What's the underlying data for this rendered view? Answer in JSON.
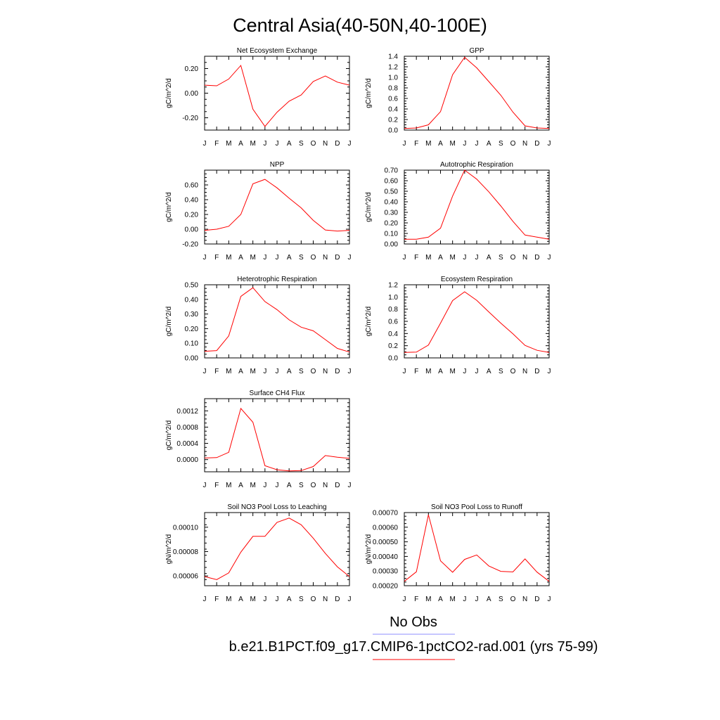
{
  "figure": {
    "title": "Central Asia(40-50N,40-100E)",
    "legend": [
      {
        "label": "No Obs",
        "color": "#8f8fff"
      },
      {
        "label": "b.e21.B1PCT.f09_g17.CMIP6-1pctCO2-rad.001 (yrs 75-99)",
        "color": "#ff0000"
      }
    ]
  },
  "chart_data": [
    {
      "type": "line",
      "title": "Net Ecosystem Exchange",
      "ylabel": "gC/m^2/d",
      "categories": [
        "J",
        "F",
        "M",
        "A",
        "M",
        "J",
        "J",
        "A",
        "S",
        "O",
        "N",
        "D",
        "J"
      ],
      "ylim": [
        -0.3,
        0.3
      ],
      "yticks": [
        -0.2,
        0.0,
        0.2
      ],
      "yticklabels": [
        "-0.20",
        "0.00",
        "0.20"
      ],
      "series": [
        {
          "color": "#ff0000",
          "values": [
            0.065,
            0.06,
            0.115,
            0.225,
            -0.13,
            -0.27,
            -0.155,
            -0.065,
            -0.015,
            0.095,
            0.14,
            0.09,
            0.065
          ]
        }
      ]
    },
    {
      "type": "line",
      "title": "GPP",
      "ylabel": "gC/m^2/d",
      "categories": [
        "J",
        "F",
        "M",
        "A",
        "M",
        "J",
        "J",
        "A",
        "S",
        "O",
        "N",
        "D",
        "J"
      ],
      "ylim": [
        0,
        1.4
      ],
      "yticks": [
        0.0,
        0.2,
        0.4,
        0.6,
        0.8,
        1.0,
        1.2,
        1.4
      ],
      "yticklabels": [
        "0.0",
        "0.2",
        "0.4",
        "0.6",
        "0.8",
        "1.0",
        "1.2",
        "1.4"
      ],
      "series": [
        {
          "color": "#ff0000",
          "values": [
            0.03,
            0.04,
            0.1,
            0.35,
            1.05,
            1.38,
            1.18,
            0.92,
            0.66,
            0.34,
            0.08,
            0.04,
            0.03
          ]
        }
      ]
    },
    {
      "type": "line",
      "title": "NPP",
      "ylabel": "gC/m^2/d",
      "categories": [
        "J",
        "F",
        "M",
        "A",
        "M",
        "J",
        "J",
        "A",
        "S",
        "O",
        "N",
        "D",
        "J"
      ],
      "ylim": [
        -0.2,
        0.8
      ],
      "yticks": [
        -0.2,
        0.0,
        0.2,
        0.4,
        0.6
      ],
      "yticklabels": [
        "-0.20",
        "0.00",
        "0.20",
        "0.40",
        "0.60"
      ],
      "series": [
        {
          "color": "#ff0000",
          "values": [
            -0.015,
            0.0,
            0.04,
            0.2,
            0.615,
            0.675,
            0.56,
            0.42,
            0.29,
            0.12,
            -0.01,
            -0.025,
            -0.015
          ]
        }
      ]
    },
    {
      "type": "line",
      "title": "Autotrophic Respiration",
      "ylabel": "gC/m^2/d",
      "categories": [
        "J",
        "F",
        "M",
        "A",
        "M",
        "J",
        "J",
        "A",
        "S",
        "O",
        "N",
        "D",
        "J"
      ],
      "ylim": [
        0,
        0.7
      ],
      "yticks": [
        0.0,
        0.1,
        0.2,
        0.3,
        0.4,
        0.5,
        0.6,
        0.7
      ],
      "yticklabels": [
        "0.00",
        "0.10",
        "0.20",
        "0.30",
        "0.40",
        "0.50",
        "0.60",
        "0.70"
      ],
      "series": [
        {
          "color": "#ff0000",
          "values": [
            0.045,
            0.045,
            0.065,
            0.15,
            0.455,
            0.7,
            0.615,
            0.495,
            0.36,
            0.215,
            0.085,
            0.065,
            0.045
          ]
        }
      ]
    },
    {
      "type": "line",
      "title": "Heterotrophic Respiration",
      "ylabel": "gC/m^2/d",
      "categories": [
        "J",
        "F",
        "M",
        "A",
        "M",
        "J",
        "J",
        "A",
        "S",
        "O",
        "N",
        "D",
        "J"
      ],
      "ylim": [
        0,
        0.5
      ],
      "yticks": [
        0.0,
        0.1,
        0.2,
        0.3,
        0.4,
        0.5
      ],
      "yticklabels": [
        "0.00",
        "0.10",
        "0.20",
        "0.30",
        "0.40",
        "0.50"
      ],
      "series": [
        {
          "color": "#ff0000",
          "values": [
            0.045,
            0.05,
            0.15,
            0.42,
            0.48,
            0.385,
            0.33,
            0.26,
            0.21,
            0.185,
            0.125,
            0.065,
            0.04
          ]
        }
      ]
    },
    {
      "type": "line",
      "title": "Ecosystem Respiration",
      "ylabel": "gC/m^2/d",
      "categories": [
        "J",
        "F",
        "M",
        "A",
        "M",
        "J",
        "J",
        "A",
        "S",
        "O",
        "N",
        "D",
        "J"
      ],
      "ylim": [
        0,
        1.2
      ],
      "yticks": [
        0.0,
        0.2,
        0.4,
        0.6,
        0.8,
        1.0,
        1.2
      ],
      "yticklabels": [
        "0.0",
        "0.2",
        "0.4",
        "0.6",
        "0.8",
        "1.0",
        "1.2"
      ],
      "series": [
        {
          "color": "#ff0000",
          "values": [
            0.09,
            0.095,
            0.21,
            0.57,
            0.94,
            1.085,
            0.945,
            0.755,
            0.57,
            0.395,
            0.205,
            0.125,
            0.09
          ]
        }
      ]
    },
    {
      "type": "line",
      "title": "Surface CH4 Flux",
      "ylabel": "gC/m^2/d",
      "categories": [
        "J",
        "F",
        "M",
        "A",
        "M",
        "J",
        "J",
        "A",
        "S",
        "O",
        "N",
        "D",
        "J"
      ],
      "ylim": [
        -0.0003,
        0.0015
      ],
      "yticks": [
        0.0,
        0.0004,
        0.0008,
        0.0012
      ],
      "yticklabels": [
        "0.0000",
        "0.0004",
        "0.0008",
        "0.0012"
      ],
      "series": [
        {
          "color": "#ff0000",
          "values": [
            4e-05,
            5e-05,
            0.00018,
            0.00126,
            0.00092,
            -0.00015,
            -0.00025,
            -0.00028,
            -0.00027,
            -0.00017,
            0.0001,
            6e-05,
            3e-05
          ]
        }
      ]
    },
    {
      "type": "line",
      "title": "Soil NO3 Pool Loss to Leaching",
      "ylabel": "gN/m^2/d",
      "categories": [
        "J",
        "F",
        "M",
        "A",
        "M",
        "J",
        "J",
        "A",
        "S",
        "O",
        "N",
        "D",
        "J"
      ],
      "ylim": [
        5.2e-05,
        0.000112
      ],
      "yticks": [
        6e-05,
        8e-05,
        0.0001
      ],
      "yticklabels": [
        "0.00006",
        "0.00008",
        "0.00010"
      ],
      "series": [
        {
          "color": "#ff0000",
          "values": [
            5.95e-05,
            5.7e-05,
            6.25e-05,
            7.95e-05,
            9.25e-05,
            9.25e-05,
            0.000104,
            0.0001075,
            0.000102,
            9.1e-05,
            7.85e-05,
            6.75e-05,
            5.95e-05
          ]
        }
      ]
    },
    {
      "type": "line",
      "title": "Soil NO3 Pool Loss to Runoff",
      "ylabel": "gN/m^2/d",
      "categories": [
        "J",
        "F",
        "M",
        "A",
        "M",
        "J",
        "J",
        "A",
        "S",
        "O",
        "N",
        "D",
        "J"
      ],
      "ylim": [
        0.0002,
        0.0007
      ],
      "yticks": [
        0.0002,
        0.0003,
        0.0004,
        0.0005,
        0.0006,
        0.0007
      ],
      "yticklabels": [
        "0.00020",
        "0.00030",
        "0.00040",
        "0.00050",
        "0.00060",
        "0.00070"
      ],
      "series": [
        {
          "color": "#ff0000",
          "values": [
            0.00023,
            0.000295,
            0.000685,
            0.00037,
            0.000292,
            0.00038,
            0.00041,
            0.000335,
            0.000298,
            0.000294,
            0.000383,
            0.000293,
            0.00023
          ]
        }
      ]
    }
  ]
}
